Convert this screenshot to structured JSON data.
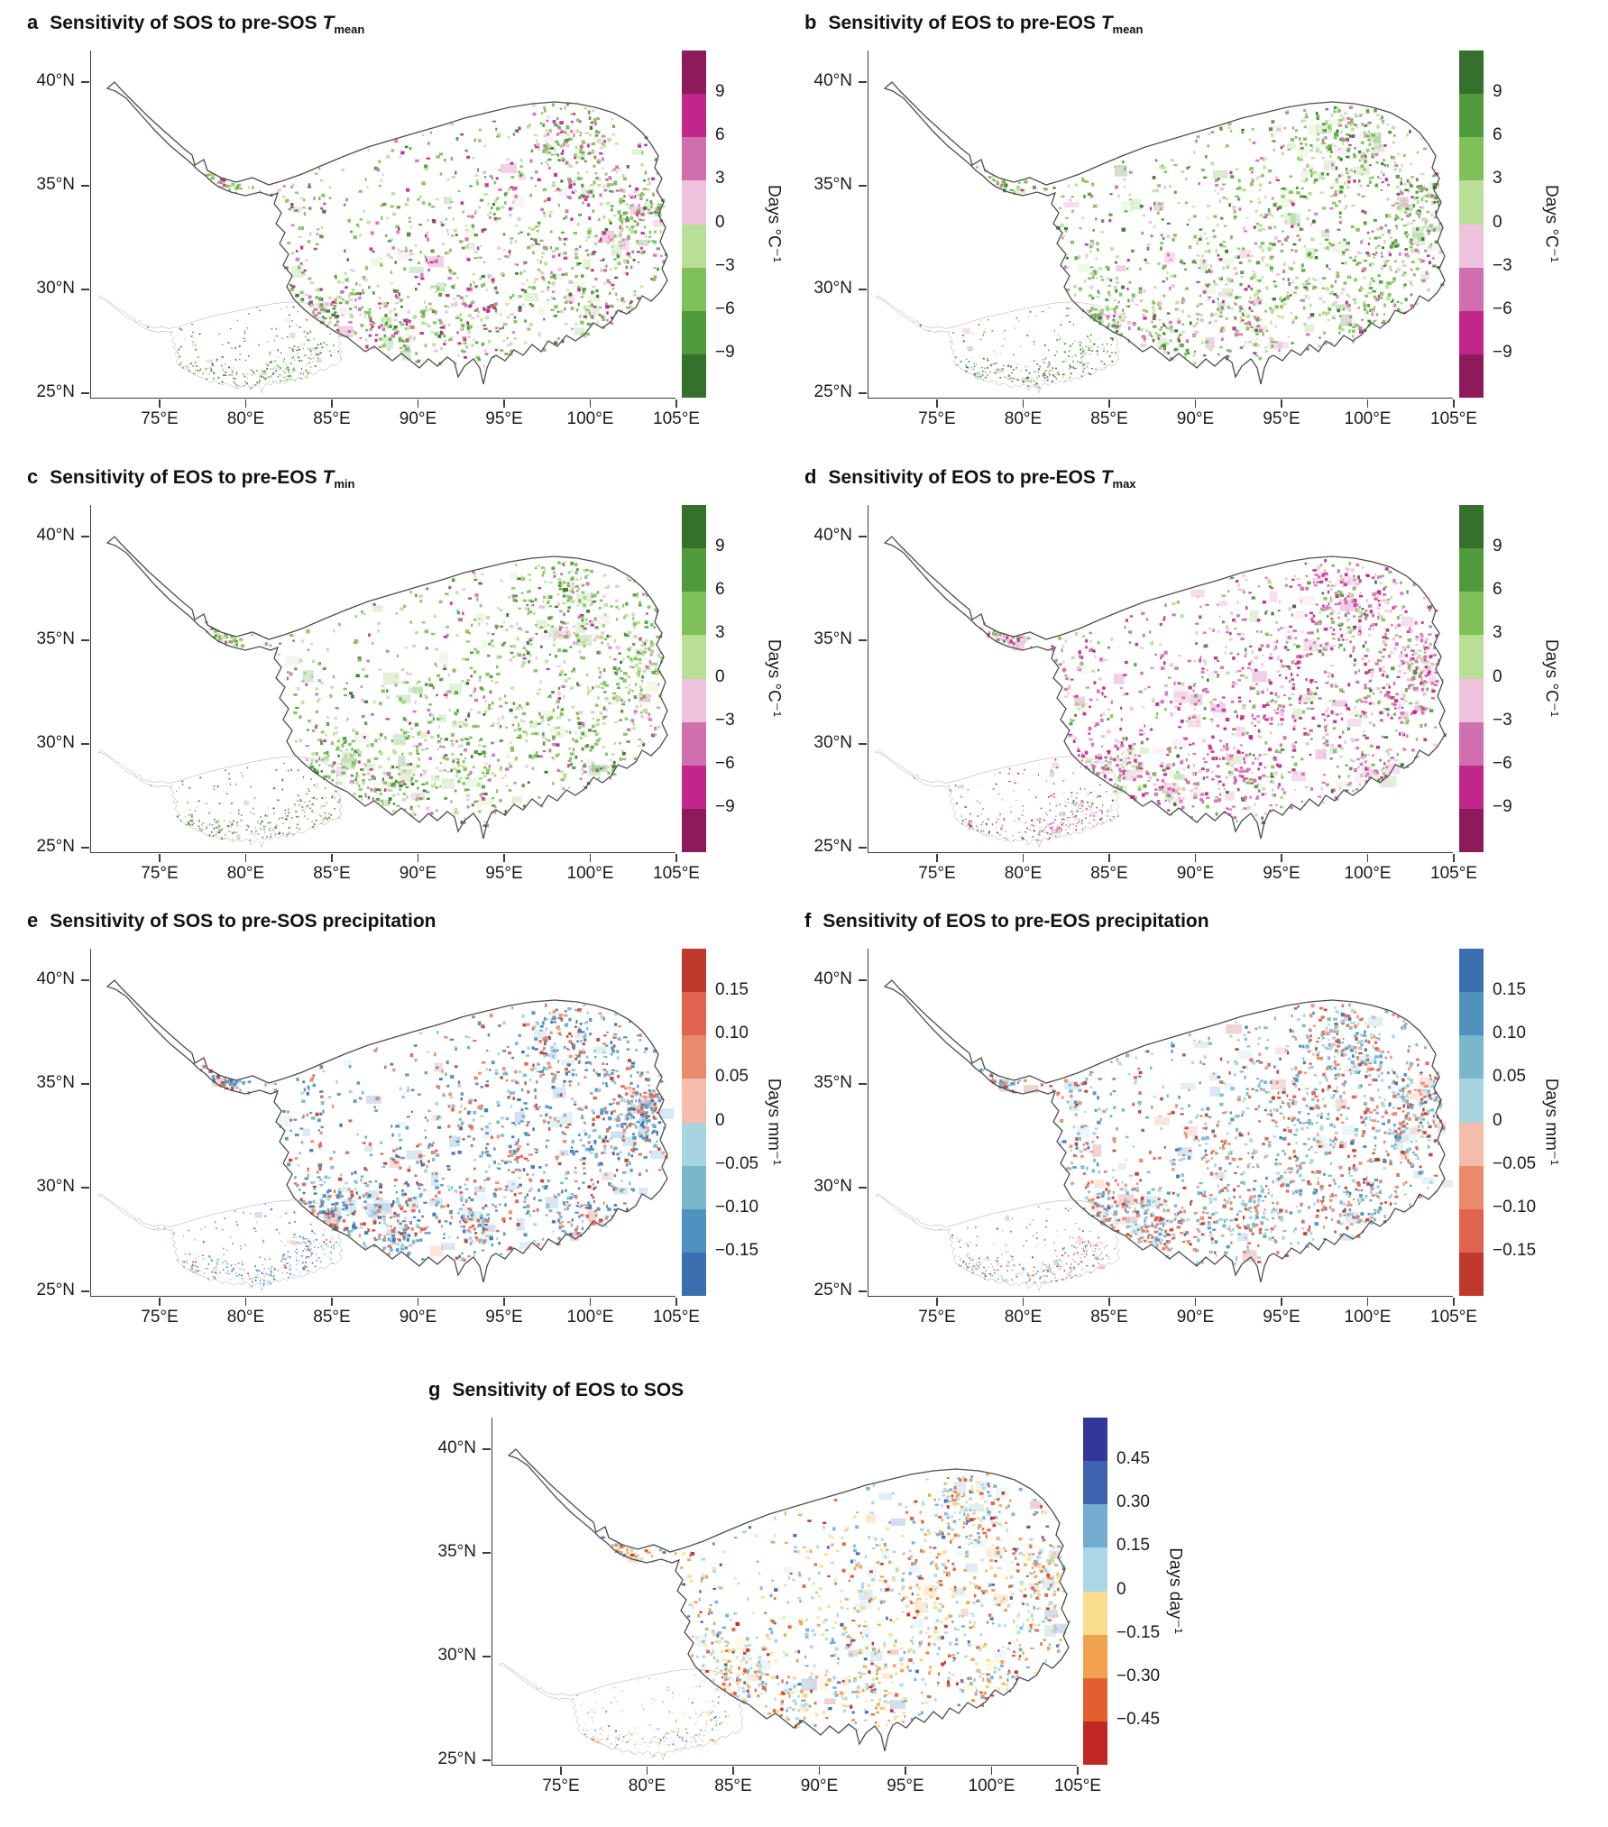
{
  "figure": {
    "region_shown": "Tibetan Plateau",
    "background_color": "#ffffff",
    "panel_grid": "2 columns x 3 rows, panel g centered in 4th row"
  },
  "axes": {
    "x_ticks": [
      "75°E",
      "80°E",
      "85°E",
      "90°E",
      "95°E",
      "100°E",
      "105°E"
    ],
    "y_ticks": [
      "40°N",
      "35°N",
      "30°N",
      "25°N"
    ]
  },
  "chart_data": [
    {
      "type": "map-heatmap",
      "panel_label": "a",
      "title": "Sensitivity of SOS to pre-SOS ",
      "title_variable": "T",
      "title_subscript": "mean",
      "colorbar": {
        "unit": "Days °C⁻¹",
        "tick_labels": [
          "9",
          "6",
          "3",
          "0",
          "−3",
          "−6",
          "−9"
        ],
        "segment_colors_top_to_bottom": [
          "#8e1b59",
          "#c1278a",
          "#d06fae",
          "#eec2dc",
          "#b9df97",
          "#7fc05a",
          "#4f9a3c",
          "#35702c"
        ]
      },
      "map_palette": {
        "colors": [
          "#7fc05a",
          "#b9df97",
          "#4f9a3c",
          "#35702c",
          "#d06fae",
          "#c1278a",
          "#eec2dc"
        ],
        "weights": [
          0.27,
          0.21,
          0.12,
          0.05,
          0.13,
          0.12,
          0.1
        ]
      },
      "inset_palette_weights": [
        0.14,
        0.1,
        0.34,
        0.3,
        0.04,
        0.04,
        0.04
      ],
      "speckle_count": 1450,
      "inset_speckle_count": 300
    },
    {
      "type": "map-heatmap",
      "panel_label": "b",
      "title": "Sensitivity of EOS to pre-EOS ",
      "title_variable": "T",
      "title_subscript": "mean",
      "colorbar": {
        "unit": "Days °C⁻¹",
        "tick_labels": [
          "9",
          "6",
          "3",
          "0",
          "−3",
          "−6",
          "−9"
        ],
        "segment_colors_top_to_bottom": [
          "#35702c",
          "#4f9a3c",
          "#7fc05a",
          "#b9df97",
          "#eec2dc",
          "#d06fae",
          "#c1278a",
          "#8e1b59"
        ]
      },
      "map_palette": {
        "colors": [
          "#7fc05a",
          "#b9df97",
          "#4f9a3c",
          "#35702c",
          "#d06fae",
          "#c1278a",
          "#eec2dc"
        ],
        "weights": [
          0.3,
          0.26,
          0.13,
          0.05,
          0.1,
          0.05,
          0.11
        ]
      },
      "inset_palette_weights": [
        0.14,
        0.1,
        0.34,
        0.3,
        0.04,
        0.04,
        0.04
      ],
      "speckle_count": 1550,
      "inset_speckle_count": 300
    },
    {
      "type": "map-heatmap",
      "panel_label": "c",
      "title": "Sensitivity of EOS to pre-EOS ",
      "title_variable": "T",
      "title_subscript": "min",
      "colorbar": {
        "unit": "Days °C⁻¹",
        "tick_labels": [
          "9",
          "6",
          "3",
          "0",
          "−3",
          "−6",
          "−9"
        ],
        "segment_colors_top_to_bottom": [
          "#35702c",
          "#4f9a3c",
          "#7fc05a",
          "#b9df97",
          "#eec2dc",
          "#d06fae",
          "#c1278a",
          "#8e1b59"
        ]
      },
      "map_palette": {
        "colors": [
          "#7fc05a",
          "#b9df97",
          "#4f9a3c",
          "#35702c",
          "#d06fae",
          "#c1278a",
          "#eec2dc"
        ],
        "weights": [
          0.32,
          0.25,
          0.16,
          0.06,
          0.08,
          0.03,
          0.1
        ]
      },
      "inset_palette_weights": [
        0.14,
        0.1,
        0.34,
        0.3,
        0.04,
        0.04,
        0.04
      ],
      "speckle_count": 1400,
      "inset_speckle_count": 300
    },
    {
      "type": "map-heatmap",
      "panel_label": "d",
      "title": "Sensitivity of EOS to pre-EOS ",
      "title_variable": "T",
      "title_subscript": "max",
      "colorbar": {
        "unit": "Days °C⁻¹",
        "tick_labels": [
          "9",
          "6",
          "3",
          "0",
          "−3",
          "−6",
          "−9"
        ],
        "segment_colors_top_to_bottom": [
          "#35702c",
          "#4f9a3c",
          "#7fc05a",
          "#b9df97",
          "#eec2dc",
          "#d06fae",
          "#c1278a",
          "#8e1b59"
        ]
      },
      "map_palette": {
        "colors": [
          "#7fc05a",
          "#b9df97",
          "#4f9a3c",
          "#35702c",
          "#d06fae",
          "#c1278a",
          "#eec2dc"
        ],
        "weights": [
          0.11,
          0.08,
          0.06,
          0.02,
          0.28,
          0.21,
          0.24
        ]
      },
      "inset_palette_weights": [
        0.08,
        0.05,
        0.16,
        0.14,
        0.26,
        0.21,
        0.1
      ],
      "speckle_count": 1650,
      "inset_speckle_count": 320
    },
    {
      "type": "map-heatmap",
      "panel_label": "e",
      "title": "Sensitivity of SOS to pre-SOS precipitation",
      "title_variable": "",
      "title_subscript": "",
      "colorbar": {
        "unit": "Days mm⁻¹",
        "tick_labels": [
          "0.15",
          "0.10",
          "0.05",
          "0",
          "−0.05",
          "−0.10",
          "−0.15"
        ],
        "segment_colors_top_to_bottom": [
          "#bf3a2c",
          "#e06350",
          "#ea8a6c",
          "#f6bcab",
          "#a7d4de",
          "#79b7ca",
          "#4f92c0",
          "#3a70b0"
        ]
      },
      "map_palette": {
        "colors": [
          "#4f92c0",
          "#79b7ca",
          "#3a70b0",
          "#a7d4de",
          "#e06350",
          "#ea8a6c",
          "#bf3a2c"
        ],
        "weights": [
          0.25,
          0.19,
          0.11,
          0.11,
          0.14,
          0.12,
          0.08
        ]
      },
      "inset_palette_weights": [
        0.28,
        0.18,
        0.22,
        0.12,
        0.08,
        0.07,
        0.05
      ],
      "speckle_count": 1600,
      "inset_speckle_count": 320
    },
    {
      "type": "map-heatmap",
      "panel_label": "f",
      "title": "Sensitivity of EOS to pre-EOS precipitation",
      "title_variable": "",
      "title_subscript": "",
      "colorbar": {
        "unit": "Days mm⁻¹",
        "tick_labels": [
          "0.15",
          "0.10",
          "0.05",
          "0",
          "−0.05",
          "−0.10",
          "−0.15"
        ],
        "segment_colors_top_to_bottom": [
          "#3a70b0",
          "#4f92c0",
          "#79b7ca",
          "#a7d4de",
          "#f6bcab",
          "#ea8a6c",
          "#e06350",
          "#bf3a2c"
        ]
      },
      "map_palette": {
        "colors": [
          "#79b7ca",
          "#a7d4de",
          "#4f92c0",
          "#3a70b0",
          "#ea8a6c",
          "#e06350",
          "#bf3a2c"
        ],
        "weights": [
          0.23,
          0.22,
          0.08,
          0.03,
          0.18,
          0.16,
          0.1
        ]
      },
      "inset_palette_weights": [
        0.22,
        0.16,
        0.18,
        0.08,
        0.16,
        0.12,
        0.08
      ],
      "speckle_count": 1750,
      "inset_speckle_count": 320
    },
    {
      "type": "map-heatmap",
      "panel_label": "g",
      "title": "Sensitivity of EOS to SOS",
      "title_variable": "",
      "title_subscript": "",
      "colorbar": {
        "unit": "Days day⁻¹",
        "tick_labels": [
          "0.45",
          "0.30",
          "0.15",
          "0",
          "−0.15",
          "−0.30",
          "−0.45"
        ],
        "segment_colors_top_to_bottom": [
          "#31379b",
          "#3f63ae",
          "#73accf",
          "#abd6e8",
          "#f9dd8d",
          "#f0a24e",
          "#e2602f",
          "#c32723"
        ]
      },
      "map_palette": {
        "colors": [
          "#abd6e8",
          "#73accf",
          "#3f63ae",
          "#f9dd8d",
          "#f0a24e",
          "#e2602f",
          "#c32723"
        ],
        "weights": [
          0.27,
          0.15,
          0.05,
          0.19,
          0.16,
          0.12,
          0.06
        ]
      },
      "inset_palette_weights": [
        0.42,
        0.12,
        0.04,
        0.26,
        0.1,
        0.04,
        0.02
      ],
      "speckle_count": 1350,
      "inset_speckle_count": 260
    }
  ]
}
